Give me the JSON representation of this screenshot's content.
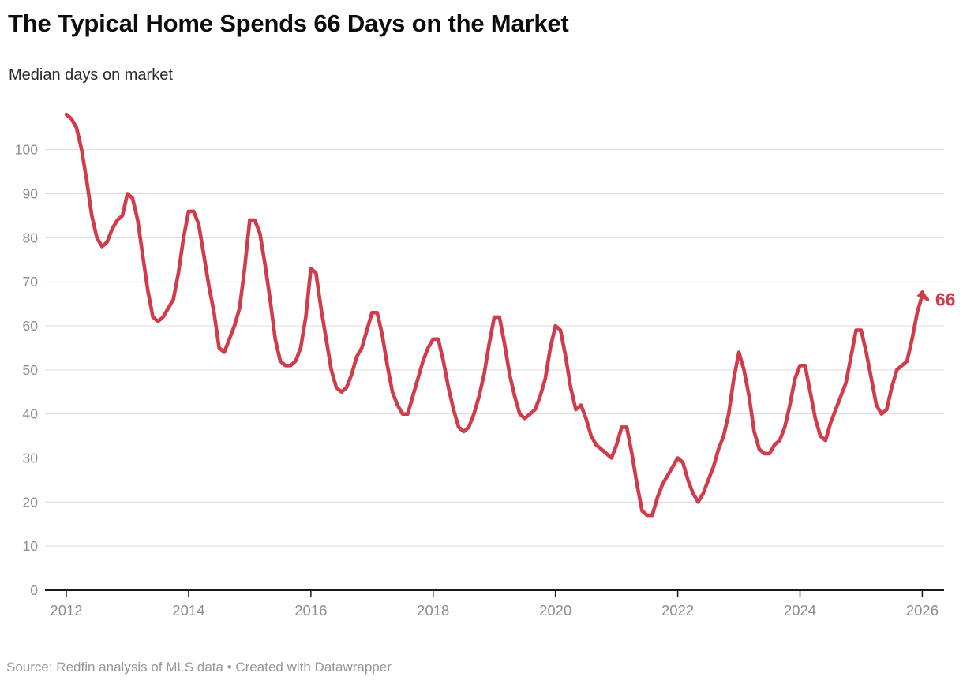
{
  "header": {
    "title": "The Typical Home Spends 66 Days on the Market",
    "subtitle": "Median days on market"
  },
  "footer": {
    "text": "Source: Redfin analysis of MLS data • Created with Datawrapper"
  },
  "colors": {
    "line": "#d23b4a",
    "end_label": "#d23b4a",
    "grid": "#dcdcdc",
    "axis_baseline": "#1a1a1a",
    "tick_label": "#8d8d8d",
    "title": "#0d0d0d",
    "subtitle": "#2b2b2b",
    "footer": "#979797"
  },
  "chart_data": {
    "type": "line",
    "title": "The Typical Home Spends 66 Days on the Market",
    "subtitle": "Median days on market",
    "ylabel": "Median days on market",
    "xlabel": "",
    "unit": "days",
    "frequency": "monthly",
    "x_start": "2012-01",
    "x_end": "2026-02",
    "ylim": [
      0,
      109
    ],
    "grid": "horizontal",
    "legend_position": "none",
    "y_ticks": [
      0,
      10,
      20,
      30,
      40,
      50,
      60,
      70,
      80,
      90,
      100
    ],
    "x_tick_years": [
      "2012",
      "2014",
      "2016",
      "2018",
      "2020",
      "2022",
      "2024",
      "2026"
    ],
    "end_label": "66",
    "series": [
      {
        "name": "Median days on market",
        "color": "#d23b4a",
        "values_by_year": {
          "2012": [
            108,
            107,
            105,
            100,
            93,
            85,
            80,
            78,
            79,
            82,
            84,
            85
          ],
          "2013": [
            90,
            89,
            84,
            76,
            68,
            62,
            61,
            62,
            64,
            66,
            72,
            80
          ],
          "2014": [
            86,
            86,
            83,
            76,
            69,
            63,
            55,
            54,
            57,
            60,
            64,
            73
          ],
          "2015": [
            84,
            84,
            81,
            74,
            66,
            57,
            52,
            51,
            51,
            52,
            55,
            62
          ],
          "2016": [
            73,
            72,
            64,
            57,
            50,
            46,
            45,
            46,
            49,
            53,
            55,
            59
          ],
          "2017": [
            63,
            63,
            58,
            51,
            45,
            42,
            40,
            40,
            44,
            48,
            52,
            55
          ],
          "2018": [
            57,
            57,
            52,
            46,
            41,
            37,
            36,
            37,
            40,
            44,
            49,
            56
          ],
          "2019": [
            62,
            62,
            56,
            49,
            44,
            40,
            39,
            40,
            41,
            44,
            48,
            55
          ],
          "2020": [
            60,
            59,
            53,
            46,
            41,
            42,
            39,
            35,
            33,
            32,
            31,
            30
          ],
          "2021": [
            33,
            37,
            37,
            31,
            24,
            18,
            17,
            17,
            21,
            24,
            26,
            28
          ],
          "2022": [
            30,
            29,
            25,
            22,
            20,
            22,
            25,
            28,
            32,
            35,
            40,
            48
          ],
          "2023": [
            54,
            50,
            44,
            36,
            32,
            31,
            31,
            33,
            34,
            37,
            42,
            48
          ],
          "2024": [
            51,
            51,
            45,
            39,
            35,
            34,
            38,
            41,
            44,
            47,
            53,
            59
          ],
          "2025": [
            59,
            54,
            48,
            42,
            40,
            41,
            46,
            50,
            51,
            52,
            57,
            63
          ],
          "2026": [
            67,
            66
          ]
        }
      }
    ]
  }
}
